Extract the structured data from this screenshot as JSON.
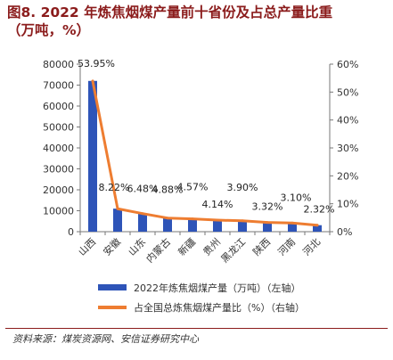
{
  "header": {
    "title_line1": "图8. 2022 年炼焦烟煤产量前十省份及占总产量比重",
    "title_line2": "（万吨，%）"
  },
  "chart_data": {
    "type": "bar",
    "categories": [
      "山西",
      "安徽",
      "山东",
      "内蒙古",
      "新疆",
      "贵州",
      "黑龙江",
      "陕西",
      "河南",
      "河北"
    ],
    "series": [
      {
        "name": "2022年炼焦烟煤产量（万吨）（左轴）",
        "type": "bar",
        "axis": "left",
        "values": [
          72000,
          11000,
          8600,
          6600,
          6100,
          5600,
          5200,
          4400,
          4200,
          3100
        ]
      },
      {
        "name": "占全国总炼焦烟煤产量比（%）（右轴）",
        "type": "line",
        "axis": "right",
        "values": [
          53.95,
          8.22,
          6.48,
          4.88,
          4.57,
          4.14,
          3.9,
          3.32,
          3.1,
          2.32
        ],
        "labels": [
          "53.95%",
          "8.22%",
          "6.48%",
          "4.88%",
          "4.57%",
          "4.14%",
          "3.90%",
          "3.32%",
          "3.10%",
          "2.32%"
        ]
      }
    ],
    "y_left": {
      "min": 0,
      "max": 80000,
      "ticks": [
        "0",
        "10000",
        "20000",
        "30000",
        "40000",
        "50000",
        "60000",
        "70000",
        "80000"
      ]
    },
    "y_right": {
      "min": 0,
      "max": 60,
      "ticks": [
        "0%",
        "10%",
        "20%",
        "30%",
        "40%",
        "50%",
        "60%"
      ]
    },
    "grid": false,
    "legend_position": "bottom",
    "colors": {
      "bar": "#2e54b8",
      "line": "#ee7d31"
    }
  },
  "footer": {
    "source": "资料来源：煤炭资源网、安信证券研究中心"
  }
}
